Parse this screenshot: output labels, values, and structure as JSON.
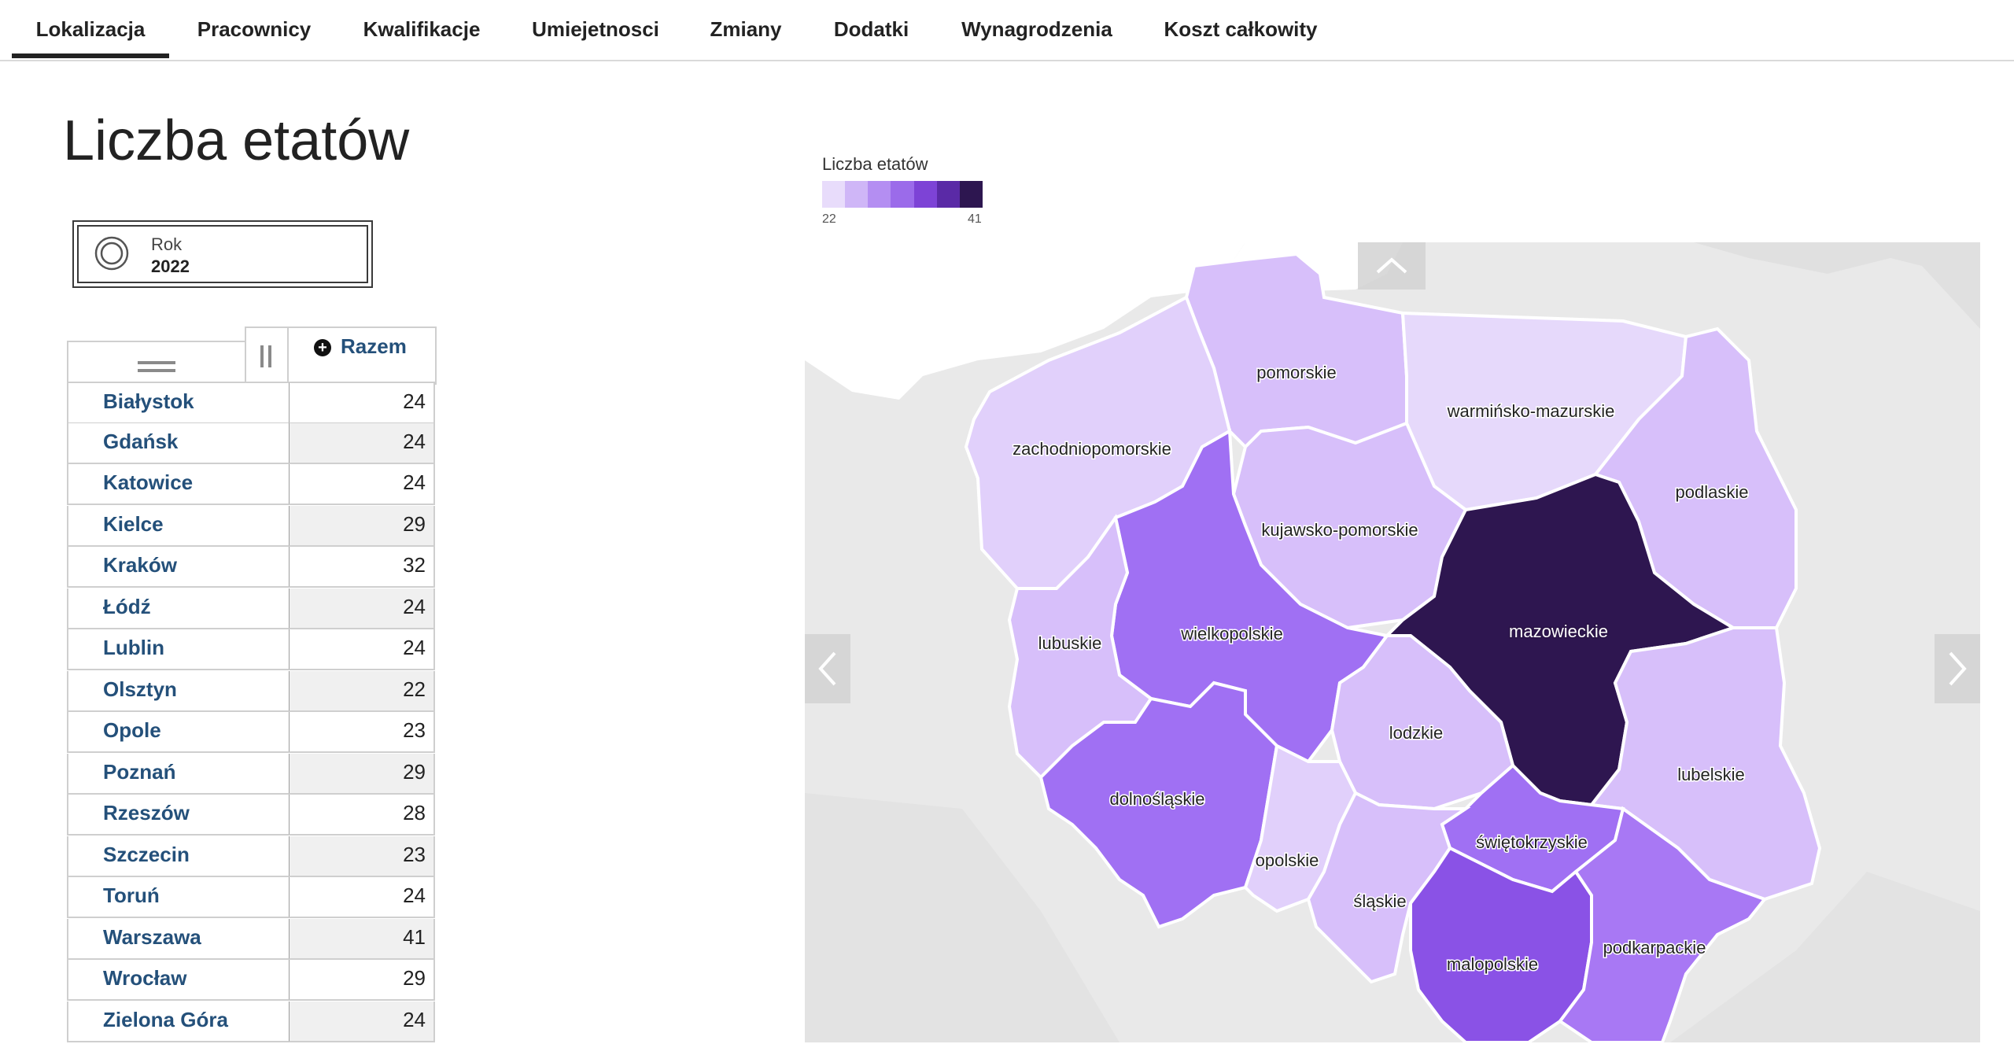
{
  "tabs": [
    "Lokalizacja",
    "Pracownicy",
    "Kwalifikacje",
    "Umiejetnosci",
    "Zmiany",
    "Dodatki",
    "Wynagrodzenia",
    "Koszt całkowity"
  ],
  "active_tab": "Lokalizacja",
  "page_title": "Liczba etatów",
  "year_filter": {
    "label": "Rok",
    "value": "2022"
  },
  "table": {
    "column_header": "Razem",
    "rows": [
      {
        "city": "Białystok",
        "value": "24"
      },
      {
        "city": "Gdańsk",
        "value": "24"
      },
      {
        "city": "Katowice",
        "value": "24"
      },
      {
        "city": "Kielce",
        "value": "29"
      },
      {
        "city": "Kraków",
        "value": "32"
      },
      {
        "city": "Łódź",
        "value": "24"
      },
      {
        "city": "Lublin",
        "value": "24"
      },
      {
        "city": "Olsztyn",
        "value": "22"
      },
      {
        "city": "Opole",
        "value": "23"
      },
      {
        "city": "Poznań",
        "value": "29"
      },
      {
        "city": "Rzeszów",
        "value": "28"
      },
      {
        "city": "Szczecin",
        "value": "23"
      },
      {
        "city": "Toruń",
        "value": "24"
      },
      {
        "city": "Warszawa",
        "value": "41"
      },
      {
        "city": "Wrocław",
        "value": "29"
      },
      {
        "city": "Zielona Góra",
        "value": "24"
      }
    ]
  },
  "legend": {
    "title": "Liczba etatów",
    "min": "22",
    "max": "41",
    "colors": [
      "#e8dcfb",
      "#cfb6f7",
      "#b48ef2",
      "#9b6bea",
      "#7d43d6",
      "#5a2aa6",
      "#2d1650"
    ]
  },
  "map": {
    "background": "#e9e9e9",
    "regions": [
      {
        "name": "pomorskie",
        "value": 24,
        "color": "#d7bffa"
      },
      {
        "name": "warmińsko-mazurskie",
        "value": 22,
        "color": "#e6d9fb"
      },
      {
        "name": "zachodniopomorskie",
        "value": 23,
        "color": "#e1d0fb"
      },
      {
        "name": "podlaskie",
        "value": 24,
        "color": "#d7bffa"
      },
      {
        "name": "kujawsko-pomorskie",
        "value": 24,
        "color": "#d7bffa"
      },
      {
        "name": "wielkopolskie",
        "value": 29,
        "color": "#a070f3"
      },
      {
        "name": "mazowieckie",
        "value": 41,
        "color": "#2e1650"
      },
      {
        "name": "lubuskie",
        "value": 24,
        "color": "#d7bffa"
      },
      {
        "name": "lodzkie",
        "value": 24,
        "color": "#d7bffa"
      },
      {
        "name": "lubelskie",
        "value": 24,
        "color": "#d7bffa"
      },
      {
        "name": "dolnośląskie",
        "value": 29,
        "color": "#a070f3"
      },
      {
        "name": "opolskie",
        "value": 23,
        "color": "#e1d0fb"
      },
      {
        "name": "świętokrzyskie",
        "value": 29,
        "color": "#a070f3"
      },
      {
        "name": "śląskie",
        "value": 24,
        "color": "#d7bffa"
      },
      {
        "name": "malopolskie",
        "value": 32,
        "color": "#8a52e6"
      },
      {
        "name": "podkarpackie",
        "value": 28,
        "color": "#a878f4"
      }
    ]
  }
}
